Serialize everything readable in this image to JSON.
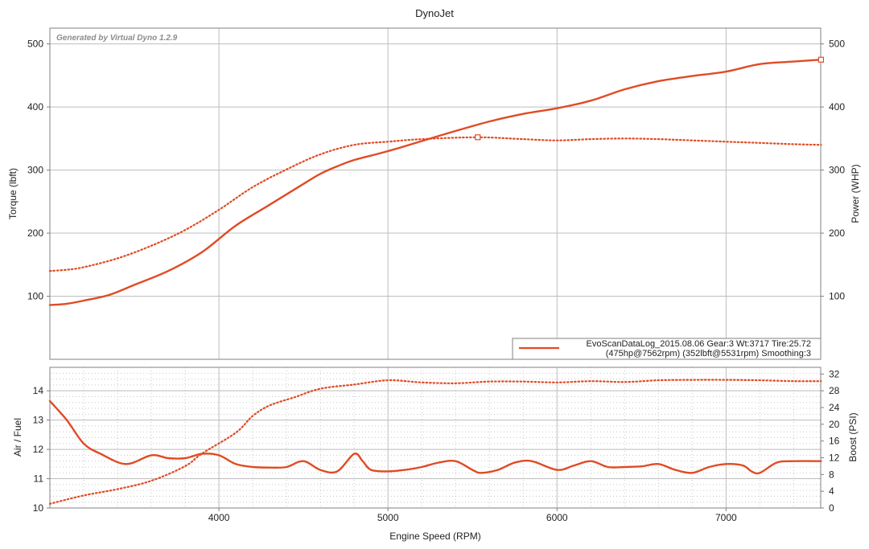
{
  "title": "DynoJet",
  "watermark": "Generated by Virtual Dyno 1.2.9",
  "colors": {
    "series": "#e04b24",
    "grid": "#bdbdbd",
    "frame": "#808080"
  },
  "legend": {
    "line1": "EvoScanDataLog_2015.08.06 Gear:3 Wt:3717 Tire:25.72",
    "line2": "(475hp@7562rpm) (352lbft@5531rpm) Smoothing:3",
    "placement": "bottom-right"
  },
  "chart_data": [
    {
      "type": "line",
      "panel": "top",
      "xlabel": "Engine Speed (RPM)",
      "ylabel": "Torque (lbft)",
      "y2label": "Power (WHP)",
      "xlim": [
        3000,
        7560
      ],
      "ylim": [
        0,
        525
      ],
      "y2lim": [
        0,
        525
      ],
      "xticks": [
        4000,
        5000,
        6000,
        7000
      ],
      "yticks": [
        100,
        200,
        300,
        400,
        500
      ],
      "y2ticks": [
        100,
        200,
        300,
        400,
        500
      ],
      "grid": true,
      "series": [
        {
          "name": "Power",
          "axis": "right",
          "style": "solid",
          "x": [
            3000,
            3100,
            3200,
            3350,
            3500,
            3700,
            3900,
            4100,
            4300,
            4500,
            4600,
            4700,
            4800,
            5000,
            5200,
            5400,
            5600,
            5800,
            6000,
            6200,
            6400,
            6600,
            6800,
            7000,
            7200,
            7400,
            7562
          ],
          "y": [
            86,
            88,
            93,
            102,
            118,
            140,
            170,
            212,
            245,
            278,
            294,
            306,
            316,
            330,
            346,
            362,
            377,
            389,
            398,
            410,
            428,
            441,
            449,
            456,
            468,
            472,
            475
          ]
        },
        {
          "name": "Torque",
          "axis": "left",
          "style": "dotted",
          "x": [
            3000,
            3100,
            3200,
            3400,
            3600,
            3800,
            4000,
            4200,
            4400,
            4600,
            4800,
            5000,
            5200,
            5531,
            5800,
            6000,
            6200,
            6400,
            6600,
            6800,
            7000,
            7200,
            7400,
            7562
          ],
          "y": [
            140,
            142,
            146,
            160,
            180,
            205,
            237,
            273,
            301,
            325,
            340,
            345,
            349,
            352,
            349,
            347,
            349,
            350,
            349,
            347,
            345,
            343,
            341,
            340
          ]
        }
      ]
    },
    {
      "type": "line",
      "panel": "bottom",
      "xlabel": "Engine Speed (RPM)",
      "ylabel": "Air / Fuel",
      "y2label": "Boost (PSI)",
      "xlim": [
        3000,
        7560
      ],
      "ylim": [
        10,
        14.8
      ],
      "y2lim": [
        0,
        33.6
      ],
      "xticks": [
        4000,
        5000,
        6000,
        7000
      ],
      "yticks": [
        10,
        11,
        12,
        13,
        14
      ],
      "y2ticks": [
        0,
        4,
        8,
        12,
        16,
        20,
        24,
        28,
        32
      ],
      "grid": true,
      "series": [
        {
          "name": "Air / Fuel",
          "axis": "left",
          "style": "solid",
          "x": [
            3000,
            3100,
            3200,
            3300,
            3450,
            3600,
            3700,
            3800,
            3900,
            4000,
            4100,
            4200,
            4300,
            4400,
            4500,
            4600,
            4700,
            4800,
            4850,
            4900,
            5000,
            5100,
            5200,
            5300,
            5400,
            5500,
            5550,
            5650,
            5750,
            5850,
            6000,
            6100,
            6200,
            6300,
            6400,
            6500,
            6600,
            6700,
            6800,
            6900,
            7000,
            7100,
            7150,
            7200,
            7300,
            7400,
            7562
          ],
          "y": [
            13.65,
            13.0,
            12.2,
            11.85,
            11.5,
            11.8,
            11.7,
            11.7,
            11.85,
            11.8,
            11.5,
            11.4,
            11.38,
            11.4,
            11.6,
            11.3,
            11.25,
            11.85,
            11.6,
            11.3,
            11.25,
            11.3,
            11.4,
            11.55,
            11.6,
            11.3,
            11.2,
            11.3,
            11.55,
            11.6,
            11.3,
            11.45,
            11.6,
            11.4,
            11.4,
            11.42,
            11.5,
            11.3,
            11.2,
            11.4,
            11.5,
            11.45,
            11.25,
            11.2,
            11.55,
            11.6,
            11.6
          ]
        },
        {
          "name": "Boost",
          "axis": "right",
          "style": "dotted",
          "x": [
            3000,
            3200,
            3400,
            3600,
            3800,
            3900,
            4100,
            4200,
            4300,
            4450,
            4600,
            4800,
            5000,
            5200,
            5400,
            5600,
            5800,
            6000,
            6200,
            6400,
            6600,
            6800,
            7000,
            7200,
            7400,
            7562
          ],
          "y": [
            1,
            3,
            4.5,
            6.5,
            10,
            13,
            18,
            22,
            24.5,
            26.5,
            28.5,
            29.5,
            30.5,
            30,
            29.8,
            30.2,
            30.2,
            30,
            30.3,
            30.1,
            30.5,
            30.6,
            30.6,
            30.5,
            30.3,
            30.3
          ]
        }
      ]
    }
  ]
}
